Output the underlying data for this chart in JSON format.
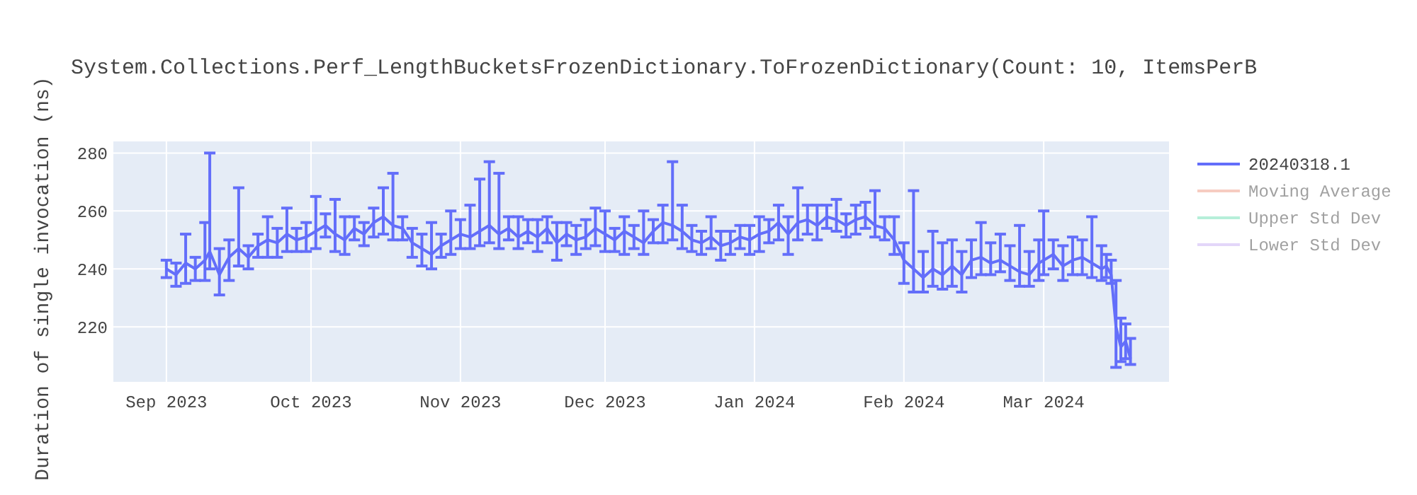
{
  "chart_data": {
    "type": "line",
    "title": "System.Collections.Perf_LengthBucketsFrozenDictionary.ToFrozenDictionary(Count: 10, ItemsPerB",
    "ylabel": "Duration of single invocation (ns)",
    "xlim": [
      "2023-08-21",
      "2024-03-27"
    ],
    "xticks": [
      {
        "value": "2023-09-01",
        "label": "Sep 2023"
      },
      {
        "value": "2023-10-01",
        "label": "Oct 2023"
      },
      {
        "value": "2023-11-01",
        "label": "Nov 2023"
      },
      {
        "value": "2023-12-01",
        "label": "Dec 2023"
      },
      {
        "value": "2024-01-01",
        "label": "Jan 2024"
      },
      {
        "value": "2024-02-01",
        "label": "Feb 2024"
      },
      {
        "value": "2024-03-01",
        "label": "Mar 2024"
      }
    ],
    "ylim": [
      201,
      284
    ],
    "yticks": [
      220,
      240,
      260,
      280
    ],
    "grid": true,
    "legend": "right",
    "series": [
      {
        "name": "20240318.1",
        "color": "#636efa",
        "x": [
          "2023-09-01",
          "2023-09-03",
          "2023-09-05",
          "2023-09-07",
          "2023-09-09",
          "2023-09-10",
          "2023-09-12",
          "2023-09-14",
          "2023-09-16",
          "2023-09-18",
          "2023-09-20",
          "2023-09-22",
          "2023-09-24",
          "2023-09-26",
          "2023-09-28",
          "2023-09-30",
          "2023-10-02",
          "2023-10-04",
          "2023-10-06",
          "2023-10-08",
          "2023-10-10",
          "2023-10-12",
          "2023-10-14",
          "2023-10-16",
          "2023-10-18",
          "2023-10-20",
          "2023-10-22",
          "2023-10-24",
          "2023-10-26",
          "2023-10-28",
          "2023-10-30",
          "2023-11-01",
          "2023-11-03",
          "2023-11-05",
          "2023-11-07",
          "2023-11-09",
          "2023-11-11",
          "2023-11-13",
          "2023-11-15",
          "2023-11-17",
          "2023-11-19",
          "2023-11-21",
          "2023-11-23",
          "2023-11-25",
          "2023-11-27",
          "2023-11-29",
          "2023-12-01",
          "2023-12-03",
          "2023-12-05",
          "2023-12-07",
          "2023-12-09",
          "2023-12-11",
          "2023-12-13",
          "2023-12-15",
          "2023-12-17",
          "2023-12-19",
          "2023-12-21",
          "2023-12-23",
          "2023-12-25",
          "2023-12-27",
          "2023-12-29",
          "2023-12-31",
          "2024-01-02",
          "2024-01-04",
          "2024-01-06",
          "2024-01-08",
          "2024-01-10",
          "2024-01-12",
          "2024-01-14",
          "2024-01-16",
          "2024-01-18",
          "2024-01-20",
          "2024-01-22",
          "2024-01-24",
          "2024-01-26",
          "2024-01-28",
          "2024-01-30",
          "2024-02-01",
          "2024-02-03",
          "2024-02-05",
          "2024-02-07",
          "2024-02-09",
          "2024-02-11",
          "2024-02-13",
          "2024-02-15",
          "2024-02-17",
          "2024-02-19",
          "2024-02-21",
          "2024-02-23",
          "2024-02-25",
          "2024-02-27",
          "2024-02-29",
          "2024-03-01",
          "2024-03-03",
          "2024-03-05",
          "2024-03-07",
          "2024-03-09",
          "2024-03-11",
          "2024-03-13",
          "2024-03-14",
          "2024-03-15",
          "2024-03-16",
          "2024-03-17",
          "2024-03-18",
          "2024-03-19"
        ],
        "values": [
          240,
          238,
          242,
          240,
          243,
          246,
          238,
          244,
          247,
          244,
          248,
          250,
          249,
          252,
          250,
          251,
          253,
          255,
          252,
          250,
          254,
          252,
          256,
          258,
          255,
          254,
          249,
          247,
          245,
          248,
          250,
          252,
          251,
          253,
          255,
          252,
          254,
          251,
          253,
          251,
          254,
          249,
          252,
          250,
          251,
          254,
          252,
          250,
          253,
          251,
          249,
          253,
          256,
          255,
          253,
          250,
          249,
          251,
          248,
          249,
          251,
          250,
          252,
          253,
          256,
          252,
          256,
          257,
          255,
          258,
          257,
          255,
          257,
          258,
          255,
          254,
          250,
          243,
          240,
          237,
          240,
          238,
          241,
          238,
          243,
          244,
          242,
          243,
          241,
          239,
          238,
          242,
          243,
          245,
          241,
          243,
          244,
          242,
          240,
          241,
          238,
          220,
          213,
          215,
          209
        ],
        "errors": [
          3,
          4,
          [
            235,
            252
          ],
          4,
          [
            236,
            256
          ],
          [
            240,
            280
          ],
          [
            231,
            247
          ],
          [
            236,
            250
          ],
          [
            241,
            268
          ],
          4,
          4,
          [
            244,
            258
          ],
          5,
          [
            246,
            261
          ],
          4,
          5,
          [
            247,
            265
          ],
          4,
          [
            246,
            264
          ],
          [
            245,
            258
          ],
          4,
          4,
          5,
          [
            252,
            268
          ],
          [
            250,
            273
          ],
          4,
          5,
          [
            241,
            252
          ],
          [
            240,
            256
          ],
          4,
          [
            245,
            260
          ],
          5,
          [
            247,
            262
          ],
          [
            248,
            271
          ],
          [
            249,
            277
          ],
          [
            247,
            273
          ],
          4,
          [
            247,
            258
          ],
          4,
          [
            246,
            257
          ],
          [
            249,
            258
          ],
          [
            243,
            256
          ],
          4,
          5,
          [
            247,
            257
          ],
          [
            248,
            261
          ],
          [
            246,
            260
          ],
          4,
          [
            245,
            258
          ],
          4,
          [
            245,
            260
          ],
          4,
          [
            249,
            262
          ],
          [
            250,
            277
          ],
          [
            247,
            262
          ],
          [
            246,
            255
          ],
          4,
          [
            247,
            258
          ],
          [
            243,
            253
          ],
          4,
          4,
          5,
          [
            246,
            258
          ],
          4,
          [
            250,
            262
          ],
          [
            245,
            258
          ],
          [
            250,
            268
          ],
          5,
          [
            250,
            262
          ],
          4,
          [
            253,
            264
          ],
          4,
          5,
          [
            254,
            263
          ],
          [
            251,
            267
          ],
          4,
          [
            245,
            258
          ],
          [
            235,
            249
          ],
          [
            232,
            267
          ],
          [
            232,
            246
          ],
          [
            234,
            253
          ],
          [
            233,
            249
          ],
          [
            234,
            250
          ],
          [
            232,
            246
          ],
          [
            237,
            250
          ],
          [
            238,
            256
          ],
          [
            238,
            249
          ],
          [
            239,
            252
          ],
          [
            236,
            248
          ],
          [
            234,
            255
          ],
          [
            234,
            246
          ],
          [
            236,
            250
          ],
          [
            238,
            260
          ],
          [
            240,
            250
          ],
          [
            236,
            248
          ],
          [
            238,
            251
          ],
          [
            238,
            250
          ],
          [
            237,
            258
          ],
          [
            236,
            248
          ],
          [
            237,
            245
          ],
          [
            235,
            243
          ],
          [
            206,
            236
          ],
          [
            208,
            223
          ],
          [
            209,
            221
          ],
          [
            207,
            216
          ]
        ]
      },
      {
        "name": "Moving Average",
        "color": "#ef9a85"
      },
      {
        "name": "Upper Std Dev",
        "color": "#6fe0b4"
      },
      {
        "name": "Lower Std Dev",
        "color": "#c9aef5"
      }
    ]
  }
}
